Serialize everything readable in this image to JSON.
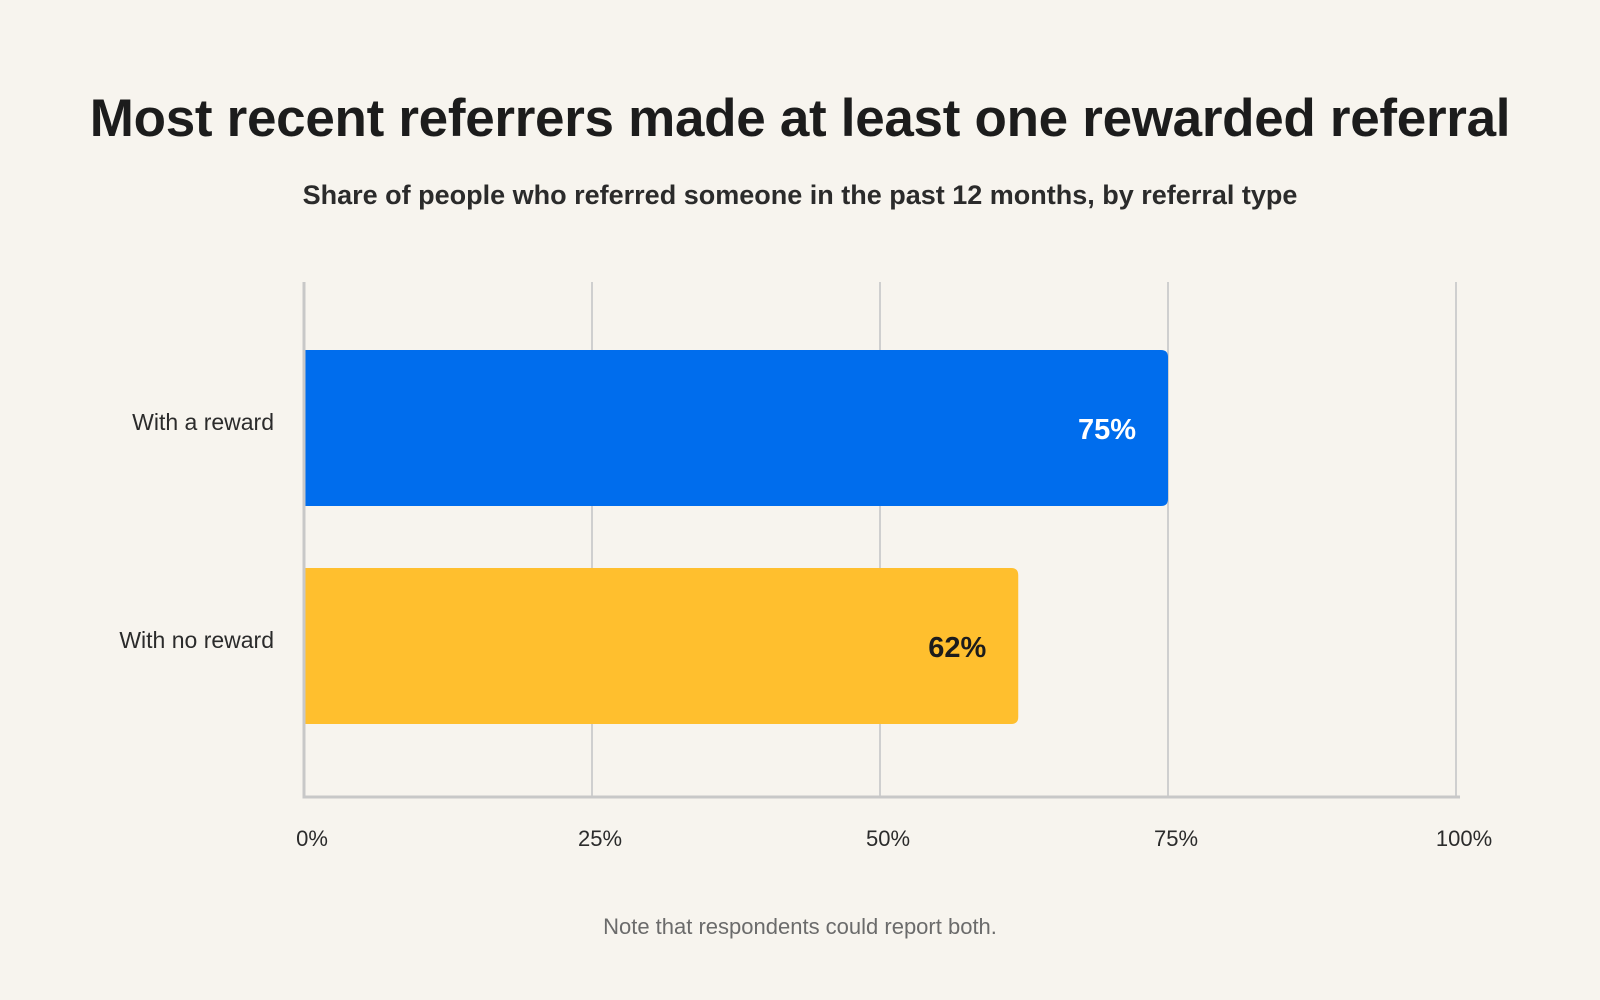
{
  "title": "Most recent referrers made at least one rewarded referral",
  "subtitle": "Share of people who referred someone in the past 12 months, by referral type",
  "note": "Note that respondents could report both.",
  "colors": {
    "with_reward": "#006ded",
    "no_reward": "#ffbf2e",
    "grid": "#cfcfcf",
    "axis": "#c8c8c8",
    "label_on_blue": "#ffffff",
    "label_on_yellow": "#1c1c1c"
  },
  "chart_data": {
    "type": "bar",
    "orientation": "horizontal",
    "title": "Most recent referrers made at least one rewarded referral",
    "subtitle": "Share of people who referred someone in the past 12 months, by referral type",
    "categories": [
      "With a reward",
      "With no reward"
    ],
    "values": [
      75,
      62
    ],
    "value_labels": [
      "75%",
      "62%"
    ],
    "xlim": [
      0,
      100
    ],
    "x_ticks": [
      0,
      25,
      50,
      75,
      100
    ],
    "x_tick_labels": [
      "0%",
      "25%",
      "50%",
      "75%",
      "100%"
    ],
    "grid": true
  }
}
